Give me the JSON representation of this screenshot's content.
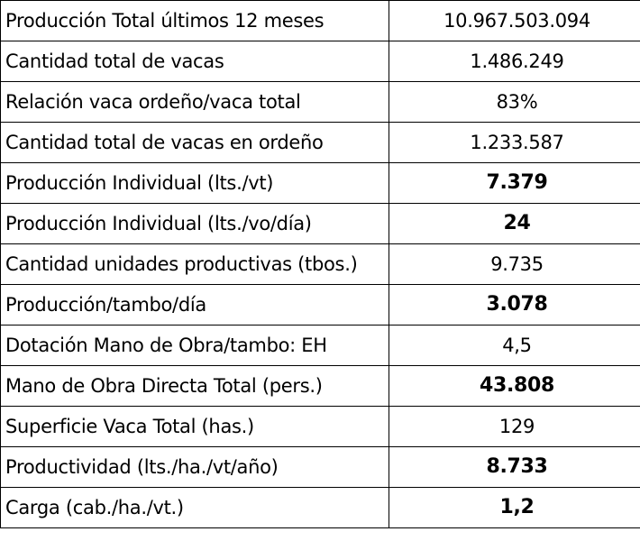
{
  "table": {
    "rows": [
      {
        "label": "Producción Total últimos 12 meses",
        "value": "10.967.503.094",
        "bold": false
      },
      {
        "label": "Cantidad total de vacas",
        "value": "1.486.249",
        "bold": false
      },
      {
        "label": "Relación vaca ordeño/vaca total",
        "value": "83%",
        "bold": false
      },
      {
        "label": "Cantidad total de vacas en ordeño",
        "value": "1.233.587",
        "bold": false
      },
      {
        "label": "Producción Individual (lts./vt)",
        "value": "7.379",
        "bold": true
      },
      {
        "label": "Producción Individual (lts./vo/día)",
        "value": "24",
        "bold": true
      },
      {
        "label": "Cantidad unidades productivas (tbos.)",
        "value": "9.735",
        "bold": false
      },
      {
        "label": "Producción/tambo/día",
        "value": "3.078",
        "bold": true
      },
      {
        "label": "Dotación Mano de Obra/tambo: EH",
        "value": "4,5",
        "bold": false
      },
      {
        "label": "Mano de Obra Directa Total (pers.)",
        "value": "43.808",
        "bold": true
      },
      {
        "label": "Superficie Vaca Total (has.)",
        "value": "129",
        "bold": false
      },
      {
        "label": "Productividad (lts./ha./vt/año)",
        "value": "8.733",
        "bold": true
      },
      {
        "label": "Carga (cab./ha./vt.)",
        "value": "1,2",
        "bold": true
      }
    ]
  },
  "colors": {
    "border": "#000000",
    "text": "#000000",
    "background": "#ffffff"
  }
}
